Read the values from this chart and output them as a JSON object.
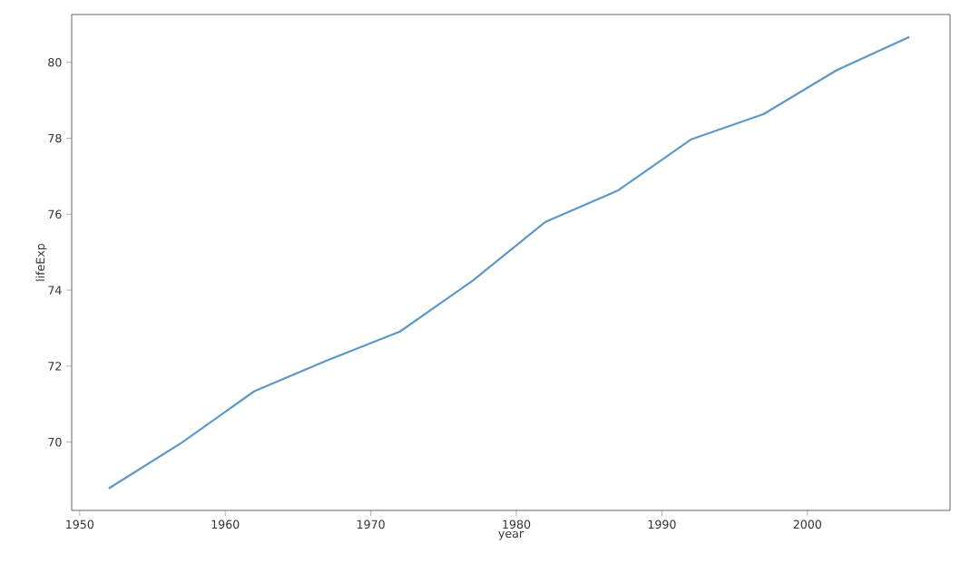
{
  "chart_data": {
    "type": "line",
    "xlabel": "year",
    "ylabel": "lifeExp",
    "x": [
      1952,
      1957,
      1962,
      1967,
      1972,
      1977,
      1982,
      1987,
      1992,
      1997,
      2002,
      2007
    ],
    "series": [
      {
        "color": "#5f97c6",
        "values": [
          68.78,
          69.98,
          71.34,
          72.15,
          72.91,
          74.25,
          75.8,
          76.63,
          77.97,
          78.64,
          79.79,
          80.67
        ]
      }
    ],
    "xlim": [
      1949.45,
      2009.8
    ],
    "ylim": [
      68.2,
      81.26
    ],
    "xticks": [
      1950,
      1960,
      1970,
      1980,
      1990,
      2000
    ],
    "yticks": [
      70,
      72,
      74,
      76,
      78,
      80
    ],
    "grid": false,
    "marker": "none",
    "line_style": "solid"
  }
}
